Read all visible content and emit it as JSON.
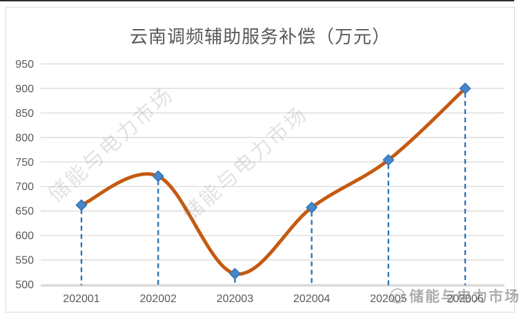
{
  "watermarks": {
    "diagonal": "储能与电力市场",
    "footer": "储能与电力市场"
  },
  "chart_data": {
    "type": "line",
    "title": "云南调频辅助服务补偿（万元）",
    "categories": [
      "202001",
      "202002",
      "202003",
      "202004",
      "202005",
      "202006"
    ],
    "values": [
      662,
      721,
      522,
      657,
      754,
      900
    ],
    "xlabel": "",
    "ylabel": "",
    "ylim": [
      500,
      950
    ],
    "yticks": [
      500,
      550,
      600,
      650,
      700,
      750,
      800,
      850,
      900,
      950
    ],
    "grid": true,
    "smooth": true,
    "legend": "none",
    "colors": {
      "line": "#C55A11",
      "marker_fill": "#4A86C8",
      "marker_border": "#2E75B6",
      "dropline": "#2E75B6",
      "gridline": "#D9D9D9",
      "axis_line": "#BFBFBF",
      "tick_label": "#595959",
      "title": "#595959"
    }
  }
}
